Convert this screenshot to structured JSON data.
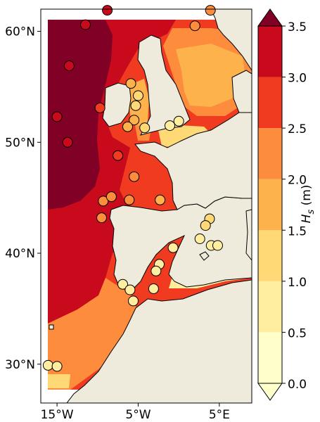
{
  "chart_data": {
    "type": "heatmap",
    "title": "",
    "x_ticks": [
      "15°W",
      "5°W",
      "5°E"
    ],
    "y_ticks": [
      "60°N",
      "50°N",
      "40°N",
      "30°N"
    ],
    "x_tick_values": [
      -15,
      -5,
      5
    ],
    "y_tick_values": [
      60,
      50,
      40,
      30
    ],
    "xlim": [
      -17,
      9
    ],
    "ylim": [
      26.5,
      62
    ],
    "colorbar": {
      "label_main": "H",
      "label_sub": "s",
      "label_unit": " (m)",
      "tick_labels": [
        "0.0",
        "0.5",
        "1.0",
        "1.5",
        "2.0",
        "2.5",
        "3.0",
        "3.5"
      ],
      "levels": [
        0.0,
        0.5,
        1.0,
        1.5,
        2.0,
        2.5,
        3.0,
        3.5
      ],
      "colors": [
        "#ffffcc",
        "#ffeda0",
        "#fed976",
        "#feb24c",
        "#fd8d3c",
        "#f03b20",
        "#c90a1d",
        "#800026"
      ],
      "extend": "both"
    },
    "land_color": "#efebdc",
    "stations": [
      {
        "lon": -8.8,
        "lat": 61.9,
        "hs": 3.0
      },
      {
        "lon": 3.9,
        "lat": 61.9,
        "hs": 2.2
      },
      {
        "lon": -11.5,
        "lat": 60.6,
        "hs": 3.2
      },
      {
        "lon": 2.0,
        "lat": 60.5,
        "hs": 2.3
      },
      {
        "lon": -13.5,
        "lat": 56.9,
        "hs": 3.2
      },
      {
        "lon": -5.9,
        "lat": 55.3,
        "hs": 1.6
      },
      {
        "lon": -5.0,
        "lat": 54.2,
        "hs": 1.3
      },
      {
        "lon": -5.3,
        "lat": 53.3,
        "hs": 1.4
      },
      {
        "lon": -5.5,
        "lat": 52.0,
        "hs": 1.6
      },
      {
        "lon": -9.7,
        "lat": 53.1,
        "hs": 2.9
      },
      {
        "lon": -6.3,
        "lat": 51.4,
        "hs": 1.9
      },
      {
        "lon": -4.2,
        "lat": 51.3,
        "hs": 1.4
      },
      {
        "lon": -15.0,
        "lat": 52.3,
        "hs": 3.2
      },
      {
        "lon": -13.7,
        "lat": 50.0,
        "hs": 3.1
      },
      {
        "lon": -1.1,
        "lat": 51.5,
        "hs": 0.9
      },
      {
        "lon": 0.0,
        "lat": 51.9,
        "hs": 0.8
      },
      {
        "lon": -7.5,
        "lat": 48.8,
        "hs": 2.6
      },
      {
        "lon": -5.5,
        "lat": 46.9,
        "hs": 2.1
      },
      {
        "lon": -9.3,
        "lat": 44.7,
        "hs": 2.1
      },
      {
        "lon": -8.3,
        "lat": 45.1,
        "hs": 2.0
      },
      {
        "lon": -6.1,
        "lat": 44.8,
        "hs": 2.3
      },
      {
        "lon": -2.3,
        "lat": 44.8,
        "hs": 1.7
      },
      {
        "lon": -9.5,
        "lat": 43.2,
        "hs": 2.0
      },
      {
        "lon": 3.8,
        "lat": 43.1,
        "hs": 1.2
      },
      {
        "lon": 3.3,
        "lat": 42.5,
        "hs": 1.0
      },
      {
        "lon": 2.6,
        "lat": 41.3,
        "hs": 0.9
      },
      {
        "lon": 4.0,
        "lat": 40.7,
        "hs": 0.8
      },
      {
        "lon": 4.8,
        "lat": 40.7,
        "hs": 0.8
      },
      {
        "lon": -0.7,
        "lat": 40.5,
        "hs": 0.7
      },
      {
        "lon": -2.4,
        "lat": 39.0,
        "hs": 0.7
      },
      {
        "lon": -2.8,
        "lat": 38.4,
        "hs": 0.7
      },
      {
        "lon": -3.1,
        "lat": 36.8,
        "hs": 0.6
      },
      {
        "lon": -6.9,
        "lat": 37.2,
        "hs": 0.8
      },
      {
        "lon": -6.0,
        "lat": 36.7,
        "hs": 0.8
      },
      {
        "lon": -5.6,
        "lat": 35.7,
        "hs": 0.7
      },
      {
        "lon": -16.1,
        "lat": 29.9,
        "hs": 0.9
      },
      {
        "lon": -15.0,
        "lat": 29.8,
        "hs": 0.8
      }
    ]
  }
}
